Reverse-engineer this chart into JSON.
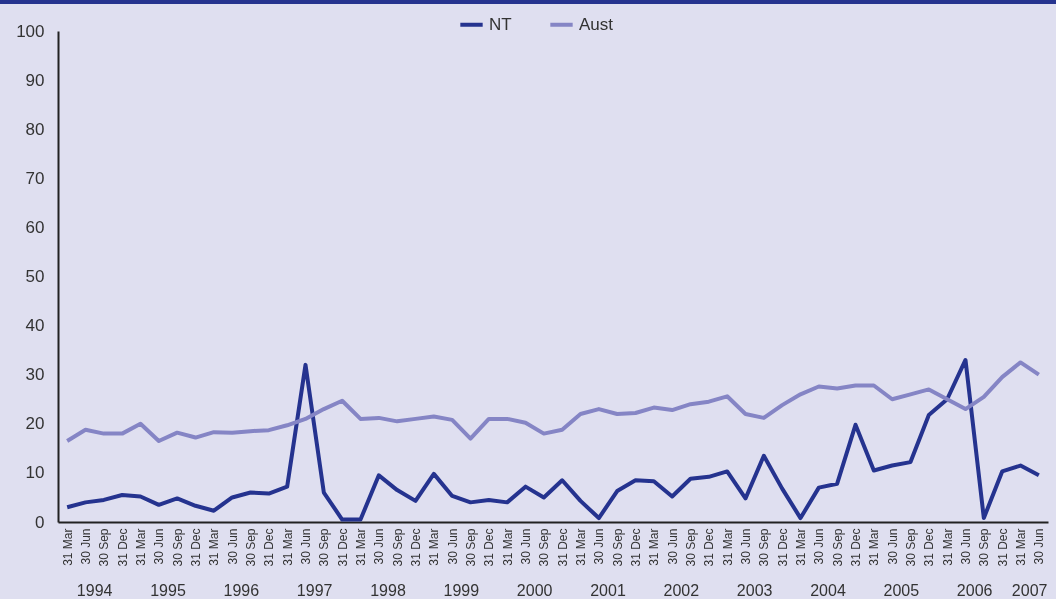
{
  "chart_data": {
    "type": "line",
    "categories": [
      "31 Mar",
      "30 Jun",
      "30 Sep",
      "31 Dec",
      "31 Mar",
      "30 Jun",
      "30 Sep",
      "31 Dec",
      "31 Mar",
      "30 Jun",
      "30 Sep",
      "31 Dec",
      "31 Mar",
      "30 Jun",
      "30 Sep",
      "31 Dec",
      "31 Mar",
      "30 Jun",
      "30 Sep",
      "31 Dec",
      "31 Mar",
      "30 Jun",
      "30 Sep",
      "31 Dec",
      "31 Mar",
      "30 Jun",
      "30 Sep",
      "31 Dec",
      "31 Mar",
      "30 Jun",
      "30 Sep",
      "31 Dec",
      "31 Mar",
      "30 Jun",
      "30 Sep",
      "31 Dec",
      "31 Mar",
      "30 Jun",
      "30 Sep",
      "31 Dec",
      "31 Mar",
      "30 Jun",
      "30 Sep",
      "31 Dec",
      "31 Mar",
      "30 Jun",
      "30 Sep",
      "31 Dec",
      "31 Mar",
      "30 Jun",
      "30 Sep",
      "31 Dec",
      "31 Mar",
      "30 Jun"
    ],
    "series": [
      {
        "name": "NT",
        "color": "#25338f",
        "values": [
          3,
          4,
          4.5,
          5.5,
          5.2,
          3.5,
          4.8,
          3.3,
          2.3,
          5,
          6,
          5.8,
          7.2,
          32,
          6,
          0.5,
          0.5,
          9.5,
          6.5,
          4.3,
          9.8,
          5.3,
          4,
          4.5,
          4,
          7.2,
          5,
          8.5,
          4.3,
          0.8,
          6.3,
          8.5,
          8.3,
          5.2,
          8.8,
          9.2,
          10.3,
          4.8,
          13.5,
          6.8,
          0.8,
          7,
          7.8,
          19.8,
          10.5,
          11.5,
          12.2,
          21.8,
          25,
          33,
          0.8,
          10.3,
          11.5,
          9.5
        ]
      },
      {
        "name": "Aust",
        "color": "#8585c5",
        "values": [
          16.5,
          18.8,
          18,
          18,
          20,
          16.5,
          18.2,
          17.2,
          18.3,
          18.2,
          18.5,
          18.7,
          19.7,
          21,
          23,
          24.7,
          21,
          21.2,
          20.5,
          21,
          21.5,
          20.8,
          17,
          21,
          21,
          20.2,
          18,
          18.8,
          22,
          23,
          22,
          22.2,
          23.3,
          22.8,
          24,
          24.5,
          25.6,
          22,
          21.2,
          23.8,
          26,
          27.6,
          27.2,
          27.8,
          27.8,
          25,
          26,
          27,
          25,
          23,
          25.5,
          29.5,
          32.5,
          30
        ]
      }
    ],
    "annotations": [
      "1994",
      "1995",
      "1996",
      "1997",
      "1998",
      "1999",
      "2000",
      "2001",
      "2002",
      "2003",
      "2004",
      "2005",
      "2006",
      "2007"
    ],
    "ylim": [
      0,
      100
    ],
    "yticks": [
      0,
      10,
      20,
      30,
      40,
      50,
      60,
      70,
      80,
      90,
      100
    ],
    "legend": "top"
  }
}
